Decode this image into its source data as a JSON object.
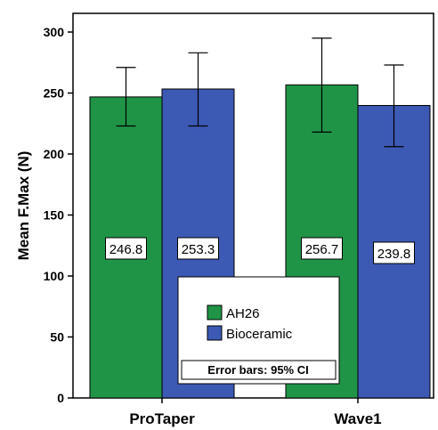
{
  "chart_data": {
    "type": "bar",
    "categories": [
      "ProTaper",
      "Wave1"
    ],
    "series": [
      {
        "name": "AH26",
        "color": "#1f9447",
        "values": [
          246.8,
          256.7
        ],
        "ci_low": [
          223,
          218
        ],
        "ci_high": [
          271,
          295
        ]
      },
      {
        "name": "Bioceramic",
        "color": "#3c59b4",
        "values": [
          253.3,
          239.8
        ],
        "ci_low": [
          223,
          206
        ],
        "ci_high": [
          283,
          273
        ]
      }
    ],
    "data_labels": [
      [
        "246.8",
        "256.7"
      ],
      [
        "253.3",
        "239.8"
      ]
    ],
    "ylabel": "Mean F.Max (N)",
    "xlabel": "",
    "ylim": [
      0,
      300
    ],
    "yticks": [
      0,
      50,
      100,
      150,
      200,
      250,
      300
    ],
    "legend": {
      "position": "bottom-center",
      "entries": [
        "AH26",
        "Bioceramic"
      ]
    },
    "note": "Error bars: 95% CI",
    "grid": false
  }
}
